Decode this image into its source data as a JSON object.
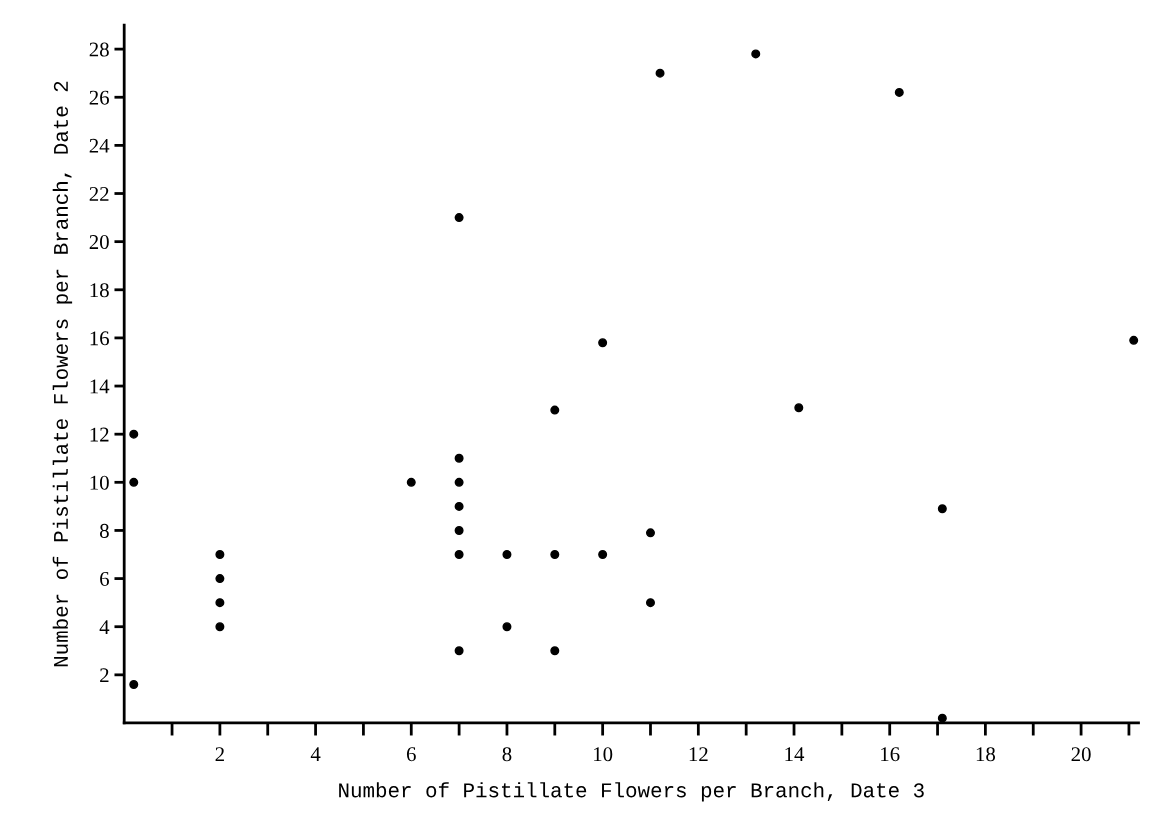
{
  "chart_data": {
    "type": "scatter",
    "xlabel": "Number of Pistillate Flowers per Branch, Date 3",
    "ylabel": "Number of Pistillate Flowers per Branch, Date 2",
    "series": [
      {
        "color": "#000000",
        "x": [
          0.2,
          0.2,
          0.2,
          2,
          2,
          2,
          2,
          6,
          7,
          7,
          7,
          7,
          7,
          7,
          7,
          8,
          8,
          9,
          9,
          9,
          10,
          10,
          11,
          11,
          11.2,
          13.2,
          14.1,
          16.2,
          17.1,
          17.1,
          21.1
        ],
        "values": [
          12,
          10,
          1.6,
          7,
          6,
          5,
          4,
          10,
          21,
          11,
          10,
          9,
          8,
          7,
          3,
          7,
          4,
          13,
          7,
          3,
          15.8,
          7,
          7.9,
          5,
          27,
          27.8,
          13.1,
          26.2,
          8.9,
          0.2,
          15.9
        ]
      }
    ],
    "xlim": [
      0,
      21.2
    ],
    "ylim": [
      0,
      29
    ],
    "xticks": [
      {
        "value": 1,
        "label": null
      },
      2,
      {
        "value": 3,
        "label": null
      },
      4,
      {
        "value": 5,
        "label": null
      },
      6,
      {
        "value": 7,
        "label": null
      },
      8,
      {
        "value": 9,
        "label": null
      },
      10,
      {
        "value": 11,
        "label": null
      },
      12,
      {
        "value": 13,
        "label": null
      },
      14,
      {
        "value": 15,
        "label": null
      },
      16,
      {
        "value": 17,
        "label": null
      },
      18,
      {
        "value": 19,
        "label": null
      },
      20,
      {
        "value": 21,
        "label": null
      }
    ],
    "yticks": [
      2,
      4,
      6,
      8,
      10,
      12,
      14,
      16,
      18,
      20,
      22,
      24,
      26,
      28
    ],
    "marker": "circle",
    "grid": false,
    "legend": false
  }
}
